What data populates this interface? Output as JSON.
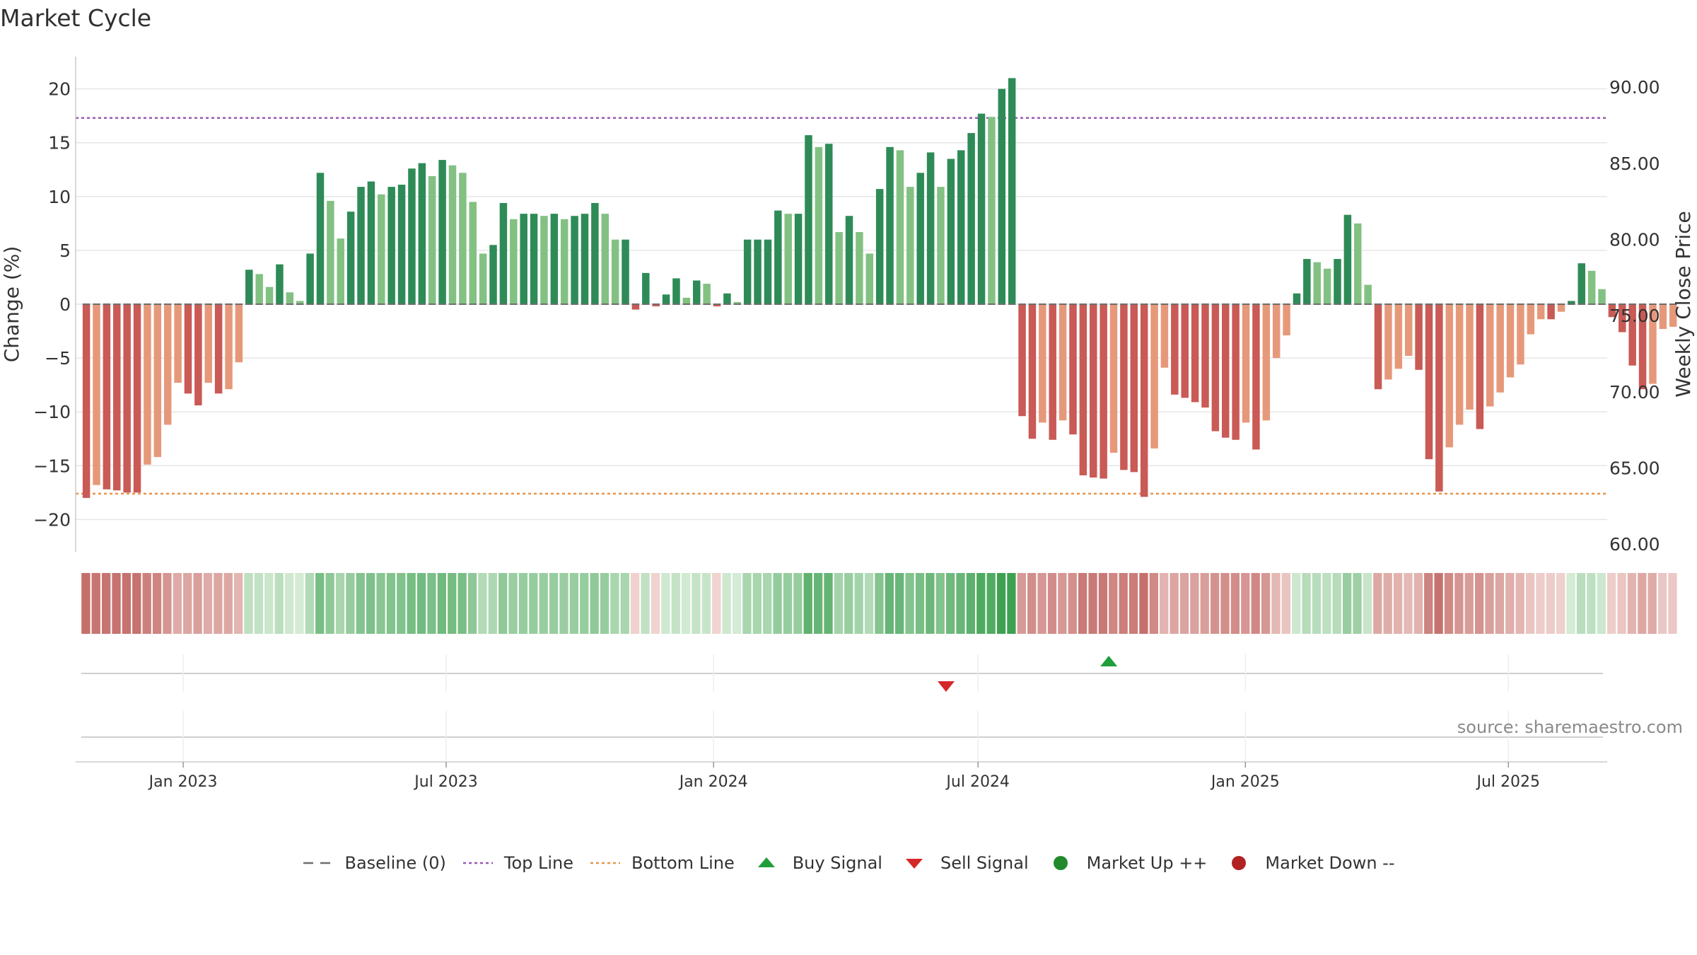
{
  "page": {
    "source_text": "source: sharemaestro.com"
  },
  "legend": {
    "items": [
      {
        "label": "Baseline (0)",
        "icon": "dash-line",
        "color": "#6e6e6e"
      },
      {
        "label": "Top Line",
        "icon": "dot-line",
        "color": "#9b59b6"
      },
      {
        "label": "Bottom Line",
        "icon": "dot-line",
        "color": "#e8944a"
      },
      {
        "label": "Buy Signal",
        "icon": "triangle-up-icon",
        "color": "#1f9e3a"
      },
      {
        "label": "Sell Signal",
        "icon": "triangle-down-icon",
        "color": "#d62728"
      },
      {
        "label": "Market Up ++",
        "icon": "circle-icon",
        "color": "#218a2a"
      },
      {
        "label": "Market Down --",
        "icon": "circle-icon",
        "color": "#b22222"
      }
    ]
  },
  "chart_data": {
    "type": "bar",
    "title": "Market Cycle",
    "ylabel": "Change (%)",
    "y2label": "Weekly Close Price",
    "ylim": [
      -23,
      23
    ],
    "y2lim": [
      59.5,
      92
    ],
    "yticks": [
      20,
      15,
      10,
      5,
      0,
      -5,
      -10,
      -15,
      -20
    ],
    "yticklabels": [
      "20",
      "15",
      "10",
      "5",
      "0",
      "−5",
      "−10",
      "−15",
      "−20"
    ],
    "y2ticks": [
      "90.00",
      "85.00",
      "80.00",
      "75.00",
      "70.00",
      "65.00",
      "60.00"
    ],
    "xlim": [
      "2022-10-19",
      "2025-09-07"
    ],
    "xticks": [
      {
        "date": "2023-01-01",
        "label": "Jan 2023"
      },
      {
        "date": "2023-07-01",
        "label": "Jul 2023"
      },
      {
        "date": "2024-01-01",
        "label": "Jan 2024"
      },
      {
        "date": "2024-07-01",
        "label": "Jul 2024"
      },
      {
        "date": "2025-01-01",
        "label": "Jan 2025"
      },
      {
        "date": "2025-07-01",
        "label": "Jul 2025"
      }
    ],
    "top_line": 17.3,
    "bottom_line": -17.6,
    "baseline": 0,
    "grid": true,
    "legend_position": "bottom",
    "weeks_start": "2022-10-23",
    "values": [
      -18,
      -16.8,
      -17.2,
      -17.3,
      -17.5,
      -17.5,
      -14.9,
      -14.2,
      -11.2,
      -7.3,
      -8.3,
      -9.4,
      -7.3,
      -8.3,
      -7.9,
      -5.4,
      3.2,
      2.8,
      1.6,
      3.7,
      1.1,
      0.3,
      4.7,
      12.2,
      9.6,
      6.1,
      8.6,
      10.9,
      11.4,
      10.2,
      10.9,
      11.1,
      12.6,
      13.1,
      11.9,
      13.4,
      12.9,
      12.2,
      9.5,
      4.7,
      5.5,
      9.4,
      7.9,
      8.4,
      8.4,
      8.2,
      8.4,
      7.9,
      8.2,
      8.4,
      9.4,
      8.4,
      6,
      6,
      -0.5,
      2.9,
      -0.2,
      0.9,
      2.4,
      0.6,
      2.2,
      1.9,
      -0.2,
      1,
      0.2,
      6,
      6,
      6,
      8.7,
      8.4,
      8.4,
      15.7,
      14.6,
      14.9,
      6.7,
      8.2,
      6.7,
      4.7,
      10.7,
      14.6,
      14.3,
      10.9,
      12.2,
      14.1,
      10.9,
      13.5,
      14.3,
      15.9,
      17.7,
      17.4,
      20,
      21,
      -10.4,
      -12.5,
      -11,
      -12.6,
      -10.8,
      -12.1,
      -15.9,
      -16.1,
      -16.2,
      -13.8,
      -15.4,
      -15.6,
      -17.9,
      -13.4,
      -5.9,
      -8.4,
      -8.7,
      -9.1,
      -9.6,
      -11.8,
      -12.4,
      -12.6,
      -11,
      -13.5,
      -10.8,
      -5,
      -2.9,
      1,
      4.2,
      3.9,
      3.3,
      4.2,
      8.3,
      7.5,
      1.8,
      -7.9,
      -7,
      -6,
      -4.8,
      -6.1,
      -14.4,
      -17.4,
      -13.3,
      -11.2,
      -9.8,
      -11.6,
      -9.5,
      -8.2,
      -6.8,
      -5.6,
      -2.8,
      -1.4,
      -1.4,
      -0.7,
      0.3,
      3.8,
      3.1,
      1.4,
      -1.2,
      -2.6,
      -5.7,
      -7.9,
      -7.4,
      -2.3,
      -2.1
    ],
    "signals": [
      {
        "type": "sell",
        "date": "2024-06-09"
      },
      {
        "type": "buy",
        "date": "2024-09-29"
      }
    ],
    "heat_colors": {
      "positive_strong": "#2e8b57",
      "positive_light": "#83c183",
      "negative_strong": "#c95a55",
      "negative_light": "#e6997a"
    }
  }
}
